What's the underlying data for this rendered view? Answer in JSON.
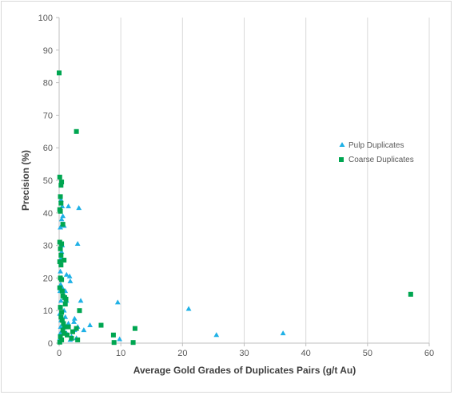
{
  "chart_data": {
    "type": "scatter",
    "title": "",
    "xlabel": "Average Gold Grades of Duplicates Pairs (g/t Au)",
    "ylabel": "Precision (%)",
    "xlim": [
      0,
      60
    ],
    "ylim": [
      0,
      100
    ],
    "xticks": [
      0,
      10,
      20,
      30,
      40,
      50,
      60
    ],
    "yticks": [
      0,
      10,
      20,
      30,
      40,
      50,
      60,
      70,
      80,
      90,
      100
    ],
    "grid": "vertical",
    "legend_position": "right",
    "series": [
      {
        "name": "Pulp Duplicates",
        "marker": "triangle",
        "color": "#1fb1e6",
        "points": [
          [
            0.1,
            0.5
          ],
          [
            0.15,
            1.5
          ],
          [
            0.2,
            3
          ],
          [
            0.25,
            5
          ],
          [
            0.3,
            7
          ],
          [
            0.1,
            9
          ],
          [
            0.2,
            11
          ],
          [
            0.3,
            13
          ],
          [
            0.15,
            16
          ],
          [
            0.25,
            18
          ],
          [
            0.35,
            20
          ],
          [
            0.2,
            22
          ],
          [
            0.3,
            26
          ],
          [
            0.4,
            28
          ],
          [
            0.5,
            30
          ],
          [
            0.2,
            35.5
          ],
          [
            0.4,
            38
          ],
          [
            0.6,
            39
          ],
          [
            0.5,
            42
          ],
          [
            0.3,
            44
          ],
          [
            0.8,
            36
          ],
          [
            1.0,
            16
          ],
          [
            0.5,
            17
          ],
          [
            0.7,
            15
          ],
          [
            1.2,
            13
          ],
          [
            0.8,
            10
          ],
          [
            1.0,
            8
          ],
          [
            1.5,
            6
          ],
          [
            1.2,
            3
          ],
          [
            1.8,
            1
          ],
          [
            2.0,
            2
          ],
          [
            2.5,
            4
          ],
          [
            2.4,
            6.5
          ],
          [
            2.5,
            7.5
          ],
          [
            2.8,
            1.5
          ],
          [
            3.0,
            5
          ],
          [
            3.5,
            13
          ],
          [
            4.0,
            4
          ],
          [
            5.0,
            5.5
          ],
          [
            1.5,
            42
          ],
          [
            3.2,
            41.5
          ],
          [
            3.0,
            30.5
          ],
          [
            1.7,
            20.5
          ],
          [
            1.8,
            19
          ],
          [
            1.2,
            21
          ],
          [
            9.5,
            12.5
          ],
          [
            9.8,
            1.2
          ],
          [
            21.0,
            10.5
          ],
          [
            25.5,
            2.5
          ],
          [
            36.3,
            3
          ]
        ]
      },
      {
        "name": "Coarse Duplicates",
        "marker": "square",
        "color": "#00a651",
        "points": [
          [
            0.0,
            83
          ],
          [
            2.8,
            65
          ],
          [
            0.1,
            51
          ],
          [
            0.3,
            48.5
          ],
          [
            0.4,
            49.5
          ],
          [
            0.2,
            45
          ],
          [
            0.3,
            43
          ],
          [
            0.1,
            41
          ],
          [
            0.2,
            40.5
          ],
          [
            0.6,
            36.5
          ],
          [
            0.1,
            31
          ],
          [
            0.4,
            30.5
          ],
          [
            0.2,
            29
          ],
          [
            0.3,
            27
          ],
          [
            0.8,
            25.5
          ],
          [
            0.1,
            25
          ],
          [
            0.3,
            24
          ],
          [
            0.2,
            20
          ],
          [
            0.4,
            19.5
          ],
          [
            0.1,
            17
          ],
          [
            0.5,
            16
          ],
          [
            0.6,
            14.5
          ],
          [
            0.9,
            14
          ],
          [
            1.1,
            13.5
          ],
          [
            1.0,
            12
          ],
          [
            0.2,
            11
          ],
          [
            0.4,
            9.5
          ],
          [
            0.3,
            8
          ],
          [
            0.5,
            7
          ],
          [
            0.7,
            6
          ],
          [
            0.9,
            5
          ],
          [
            0.6,
            4
          ],
          [
            0.8,
            3
          ],
          [
            0.2,
            2
          ],
          [
            0.4,
            1
          ],
          [
            0.1,
            0.3
          ],
          [
            1.3,
            2.5
          ],
          [
            1.5,
            5
          ],
          [
            2.2,
            3.5
          ],
          [
            2.8,
            4.5
          ],
          [
            3.3,
            10
          ],
          [
            3.0,
            1
          ],
          [
            2.0,
            1.5
          ],
          [
            6.8,
            5.5
          ],
          [
            8.8,
            2.5
          ],
          [
            8.9,
            0.2
          ],
          [
            12.0,
            0.2
          ],
          [
            12.3,
            4.5
          ],
          [
            57.0,
            15
          ]
        ]
      }
    ]
  }
}
